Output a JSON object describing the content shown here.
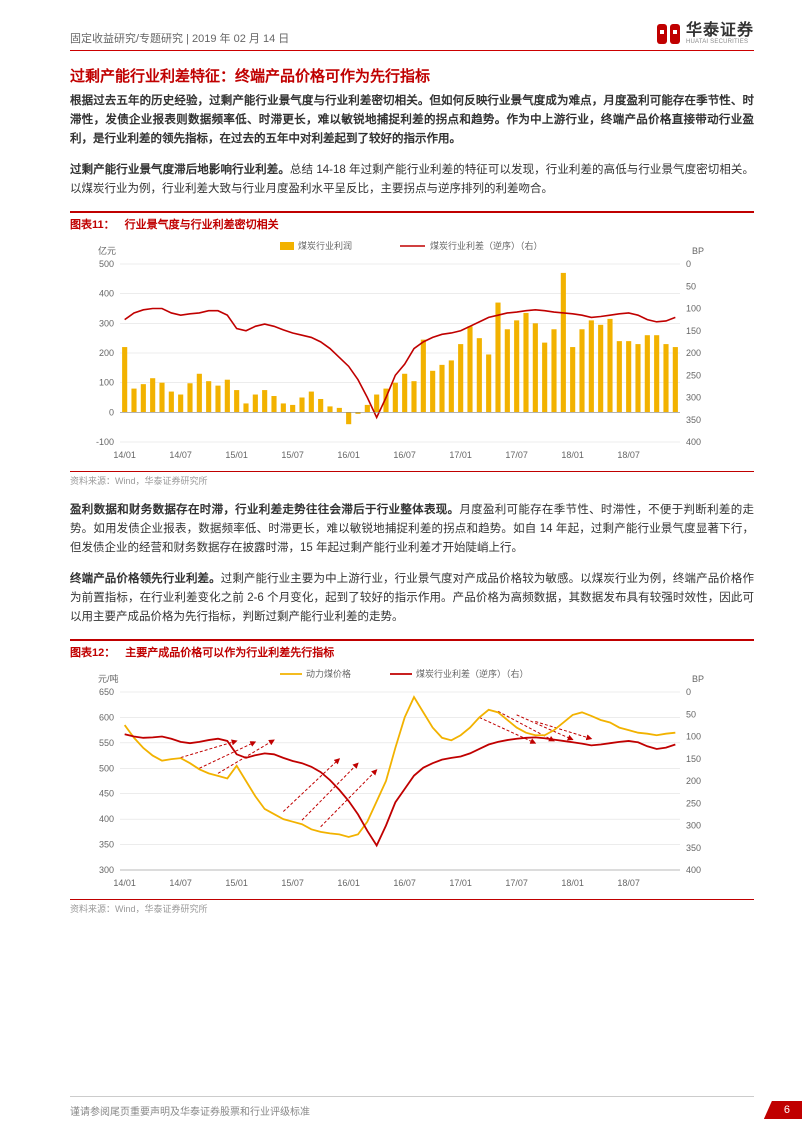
{
  "header": {
    "breadcrumb": "固定收益研究/专题研究 | 2019 年 02 月 14 日",
    "logo_cn": "华泰证券",
    "logo_en": "HUATAI SECURITIES"
  },
  "section_title": "过剩产能行业利差特征：终端产品价格可作为先行指标",
  "para1": "根据过去五年的历史经验，过剩产能行业景气度与行业利差密切相关。但如何反映行业景气度成为难点，月度盈利可能存在季节性、时滞性，发债企业报表则数据频率低、时滞更长，难以敏锐地捕捉利差的拐点和趋势。作为中上游行业，终端产品价格直接带动行业盈利，是行业利差的领先指标，在过去的五年中对利差起到了较好的指示作用。",
  "para2_lead": "过剩产能行业景气度滞后地影响行业利差。",
  "para2_rest": "总结 14-18 年过剩产能行业利差的特征可以发现，行业利差的高低与行业景气度密切相关。以煤炭行业为例，行业利差大致与行业月度盈利水平呈反比，主要拐点与逆序排列的利差吻合。",
  "chart11": {
    "tag": "图表11：",
    "title": "行业景气度与行业利差密切相关",
    "y_left_label": "亿元",
    "y_right_label": "BP",
    "legend_bar": "煤炭行业利润",
    "legend_line": "煤炭行业利差（逆序）（右）",
    "x_categories": [
      "14/01",
      "14/07",
      "15/01",
      "15/07",
      "16/01",
      "16/07",
      "17/01",
      "17/07",
      "18/01",
      "18/07"
    ],
    "y_left_ticks": [
      -100,
      0,
      100,
      200,
      300,
      400,
      500
    ],
    "y_right_ticks_inverted": [
      0,
      50,
      100,
      150,
      200,
      250,
      300,
      350,
      400
    ],
    "bar_values": [
      220,
      80,
      95,
      115,
      100,
      70,
      60,
      98,
      130,
      105,
      90,
      110,
      75,
      30,
      60,
      75,
      55,
      30,
      25,
      50,
      70,
      45,
      20,
      15,
      -40,
      -5,
      25,
      60,
      80,
      100,
      130,
      105,
      245,
      140,
      160,
      175,
      230,
      290,
      250,
      195,
      370,
      280,
      310,
      335,
      300,
      235,
      280,
      470,
      220,
      280,
      310,
      295,
      315,
      240,
      240,
      230,
      260,
      260,
      230,
      220
    ],
    "line_values_bp": [
      125,
      110,
      103,
      100,
      100,
      110,
      115,
      112,
      110,
      105,
      105,
      115,
      145,
      150,
      140,
      135,
      140,
      148,
      155,
      160,
      165,
      175,
      190,
      210,
      230,
      260,
      300,
      345,
      300,
      250,
      225,
      190,
      175,
      165,
      158,
      155,
      150,
      140,
      130,
      120,
      115,
      110,
      108,
      105,
      103,
      105,
      108,
      110,
      112,
      115,
      120,
      118,
      115,
      112,
      110,
      115,
      125,
      130,
      128,
      120
    ],
    "bar_color": "#f2b200",
    "line_color": "#c00000",
    "grid_color": "#d9d9d9",
    "source": "资料来源：Wind，华泰证券研究所"
  },
  "para3_lead": "盈利数据和财务数据存在时滞，行业利差走势往往会滞后于行业整体表现。",
  "para3_rest": "月度盈利可能存在季节性、时滞性，不便于判断利差的走势。如用发债企业报表，数据频率低、时滞更长，难以敏锐地捕捉利差的拐点和趋势。如自 14 年起，过剩产能行业景气度显著下行，但发债企业的经营和财务数据存在披露时滞，15 年起过剩产能行业利差才开始陡峭上行。",
  "para4_lead": "终端产品价格领先行业利差。",
  "para4_rest": "过剩产能行业主要为中上游行业，行业景气度对产成品价格较为敏感。以煤炭行业为例，终端产品价格作为前置指标，在行业利差变化之前 2-6 个月变化，起到了较好的指示作用。产品价格为高频数据，其数据发布具有较强时效性，因此可以用主要产成品价格为先行指标，判断过剩产能行业利差的走势。",
  "chart12": {
    "tag": "图表12：",
    "title": "主要产成品价格可以作为行业利差先行指标",
    "y_left_label": "元/吨",
    "y_right_label": "BP",
    "legend_line1": "动力煤价格",
    "legend_line2": "煤炭行业利差（逆序）（右）",
    "x_categories": [
      "14/01",
      "14/07",
      "15/01",
      "15/07",
      "16/01",
      "16/07",
      "17/01",
      "17/07",
      "18/01",
      "18/07"
    ],
    "y_left_ticks": [
      300,
      350,
      400,
      450,
      500,
      550,
      600,
      650
    ],
    "y_right_ticks_inverted": [
      0,
      50,
      100,
      150,
      200,
      250,
      300,
      350,
      400
    ],
    "line1_values": [
      585,
      560,
      540,
      525,
      515,
      518,
      520,
      510,
      498,
      490,
      485,
      480,
      505,
      475,
      445,
      420,
      410,
      400,
      395,
      390,
      380,
      375,
      372,
      370,
      365,
      370,
      395,
      435,
      475,
      540,
      600,
      640,
      610,
      580,
      560,
      555,
      565,
      580,
      600,
      615,
      610,
      595,
      580,
      570,
      565,
      565,
      575,
      590,
      605,
      610,
      603,
      595,
      590,
      580,
      575,
      570,
      568,
      565,
      568,
      570
    ],
    "line2_values_bp": [
      95,
      100,
      103,
      102,
      100,
      105,
      112,
      115,
      112,
      108,
      105,
      110,
      140,
      148,
      142,
      138,
      140,
      148,
      155,
      160,
      168,
      180,
      198,
      220,
      245,
      275,
      312,
      345,
      300,
      248,
      218,
      188,
      170,
      160,
      152,
      148,
      145,
      138,
      128,
      118,
      112,
      108,
      105,
      103,
      102,
      104,
      107,
      110,
      113,
      116,
      120,
      118,
      115,
      112,
      110,
      113,
      122,
      128,
      125,
      118
    ],
    "line1_color": "#f2b200",
    "line2_color": "#c00000",
    "grid_color": "#d9d9d9",
    "source": "资料来源：Wind，华泰证券研究所"
  },
  "footer": {
    "disclaimer": "谨请参阅尾页重要声明及华泰证券股票和行业评级标准",
    "page_num": "6"
  }
}
